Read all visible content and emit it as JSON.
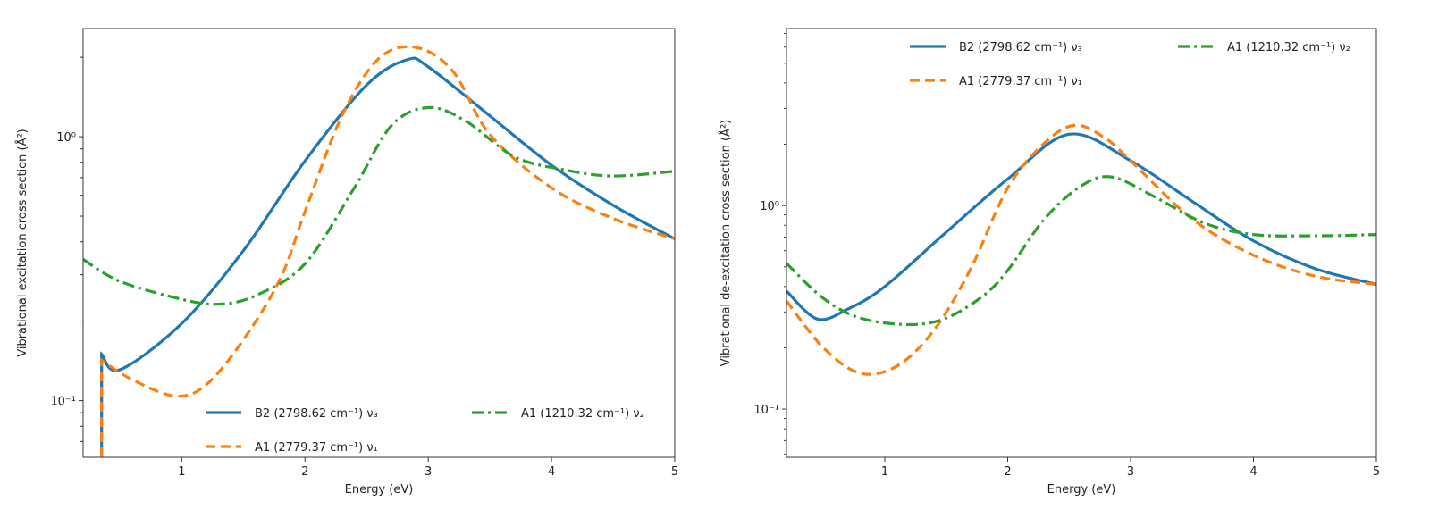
{
  "chart_data": [
    {
      "type": "line",
      "title": "",
      "xlabel": "Energy (eV)",
      "ylabel": "Vibrational excitation cross section (Å²)",
      "yscale": "log",
      "xlim": [
        0.2,
        5
      ],
      "ylim": [
        0.061,
        2.57
      ],
      "xticks": [
        {
          "v": 1,
          "label": "1"
        },
        {
          "v": 2,
          "label": "2"
        },
        {
          "v": 3,
          "label": "3"
        },
        {
          "v": 4,
          "label": "4"
        },
        {
          "v": 5,
          "label": "5"
        }
      ],
      "yticks": [
        {
          "v": 0.1,
          "label": "10⁻¹"
        },
        {
          "v": 1,
          "label": "10⁰"
        }
      ],
      "grid": false,
      "legend_placement": "lower-center",
      "series": [
        {
          "name": "B2 (2798.62 cm⁻¹) ν₃",
          "color": "#1f77b4",
          "style": "solid",
          "x": [
            0.35,
            0.5,
            1.0,
            1.5,
            2.0,
            2.5,
            2.83,
            3.0,
            3.5,
            4.0,
            4.5,
            5.0
          ],
          "y": [
            0.15,
            0.131,
            0.196,
            0.37,
            0.81,
            1.57,
            1.96,
            1.84,
            1.2,
            0.78,
            0.55,
            0.41
          ]
        },
        {
          "name": "A1 (2779.37 cm⁻¹) ν₁",
          "color": "#ff7f0e",
          "style": "dashed",
          "x": [
            0.35,
            0.6,
            0.95,
            1.2,
            1.5,
            1.8,
            2.0,
            2.3,
            2.6,
            2.9,
            3.2,
            3.5,
            4.0,
            4.5,
            5.0
          ],
          "y": [
            0.142,
            0.12,
            0.104,
            0.115,
            0.17,
            0.29,
            0.52,
            1.2,
            1.98,
            2.18,
            1.77,
            1.02,
            0.64,
            0.49,
            0.41
          ]
        },
        {
          "name": "A1 (1210.32 cm⁻¹) ν₂",
          "color": "#2ca02c",
          "style": "dashdot",
          "x": [
            0.2,
            0.5,
            1.0,
            1.3,
            1.6,
            2.0,
            2.4,
            2.7,
            3.0,
            3.3,
            3.7,
            4.1,
            4.5,
            5.0
          ],
          "y": [
            0.343,
            0.283,
            0.242,
            0.232,
            0.25,
            0.33,
            0.64,
            1.1,
            1.29,
            1.15,
            0.84,
            0.75,
            0.71,
            0.74
          ]
        }
      ]
    },
    {
      "type": "line",
      "title": "",
      "xlabel": "Energy (eV)",
      "ylabel": "Vibrational de-excitation cross section (Å²)",
      "yscale": "log",
      "xlim": [
        0.2,
        5
      ],
      "ylim": [
        0.058,
        7.4
      ],
      "xticks": [
        {
          "v": 1,
          "label": "1"
        },
        {
          "v": 2,
          "label": "2"
        },
        {
          "v": 3,
          "label": "3"
        },
        {
          "v": 4,
          "label": "4"
        },
        {
          "v": 5,
          "label": "5"
        }
      ],
      "yticks": [
        {
          "v": 0.1,
          "label": "10⁻¹"
        },
        {
          "v": 1,
          "label": "10⁰"
        }
      ],
      "grid": false,
      "legend_placement": "upper-right",
      "series": [
        {
          "name": "B2 (2798.62 cm⁻¹) ν₃",
          "color": "#1f77b4",
          "style": "solid",
          "x": [
            0.2,
            0.45,
            0.7,
            1.0,
            1.5,
            2.0,
            2.5,
            3.0,
            3.5,
            4.0,
            4.5,
            5.0
          ],
          "y": [
            0.38,
            0.277,
            0.31,
            0.4,
            0.74,
            1.35,
            2.24,
            1.66,
            1.05,
            0.67,
            0.49,
            0.41
          ]
        },
        {
          "name": "A1 (2779.37 cm⁻¹) ν₁",
          "color": "#ff7f0e",
          "style": "dashed",
          "x": [
            0.2,
            0.5,
            0.8,
            1.1,
            1.4,
            1.7,
            2.0,
            2.3,
            2.55,
            2.8,
            3.0,
            3.5,
            4.0,
            4.5,
            5.0
          ],
          "y": [
            0.34,
            0.2,
            0.15,
            0.163,
            0.244,
            0.49,
            1.22,
            2.03,
            2.48,
            2.13,
            1.66,
            0.86,
            0.57,
            0.45,
            0.41
          ]
        },
        {
          "name": "A1 (1210.32 cm⁻¹) ν₂",
          "color": "#2ca02c",
          "style": "dashdot",
          "x": [
            0.2,
            0.5,
            0.8,
            1.2,
            1.5,
            1.8,
            2.0,
            2.3,
            2.6,
            2.85,
            3.2,
            3.6,
            4.0,
            4.5,
            5.0
          ],
          "y": [
            0.52,
            0.35,
            0.28,
            0.26,
            0.28,
            0.36,
            0.48,
            0.86,
            1.25,
            1.38,
            1.1,
            0.82,
            0.72,
            0.71,
            0.72
          ]
        }
      ]
    }
  ]
}
